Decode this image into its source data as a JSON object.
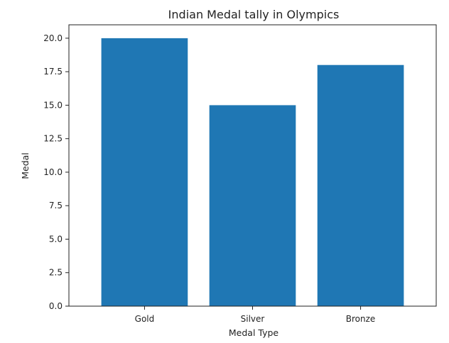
{
  "chart_data": {
    "type": "bar",
    "title": "Indian Medal tally in Olympics",
    "xlabel": "Medal Type",
    "ylabel": "Medal",
    "categories": [
      "Gold",
      "Silver",
      "Bronze"
    ],
    "values": [
      20,
      15,
      18
    ],
    "ylim": [
      0,
      21
    ],
    "yticks": [
      "0.0",
      "2.5",
      "5.0",
      "7.5",
      "10.0",
      "12.5",
      "15.0",
      "17.5",
      "20.0"
    ],
    "grid": false,
    "colors": {
      "bar": "#1f77b4",
      "axis": "#222222"
    }
  }
}
